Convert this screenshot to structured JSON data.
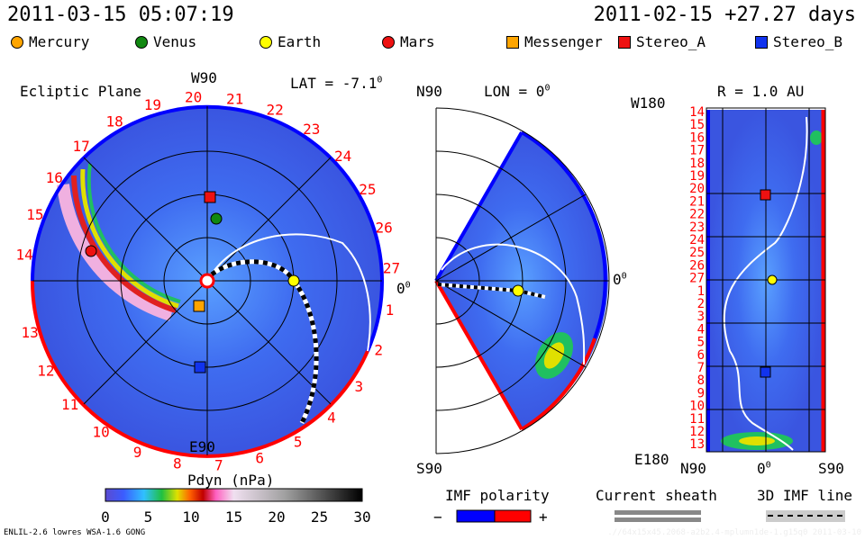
{
  "header": {
    "current_time": "2011-03-15 05:07:19",
    "reference": "2011-02-15 +27.27 days"
  },
  "legend": [
    {
      "label": "Mercury",
      "shape": "circle",
      "color": "#ffa500"
    },
    {
      "label": "Venus",
      "shape": "circle",
      "color": "#118811"
    },
    {
      "label": "Earth",
      "shape": "circle",
      "color": "#ffff00"
    },
    {
      "label": "Mars",
      "shape": "circle",
      "color": "#ee1111"
    },
    {
      "label": "Messenger",
      "shape": "square",
      "color": "#ffa500"
    },
    {
      "label": "Stereo_A",
      "shape": "square",
      "color": "#ee1111"
    },
    {
      "label": "Stereo_B",
      "shape": "square",
      "color": "#1133ee"
    }
  ],
  "ecliptic": {
    "title": "Ecliptic Plane",
    "top_label": "W90",
    "bottom_label": "E90",
    "lat_label": "LAT = -7.1",
    "lat_sup": "0",
    "right_label": "0",
    "right_sup": "0",
    "days_upper": [
      "14",
      "15",
      "16",
      "17",
      "18",
      "19",
      "20",
      "21",
      "22",
      "23",
      "24",
      "25",
      "26",
      "27"
    ],
    "days_lower": [
      "1",
      "2",
      "3",
      "4",
      "5",
      "6",
      "7",
      "8",
      "9",
      "10",
      "11",
      "12",
      "13"
    ]
  },
  "meridional": {
    "top_label": "N90",
    "bottom_label": "S90",
    "lon_label": "LON = 0",
    "lon_sup": "0",
    "right_label": "0",
    "right_sup": "0"
  },
  "radial": {
    "title": "R = 1.0 AU",
    "top_label": "W180",
    "bottom_label": "E180",
    "x_left": "N90",
    "x_mid": "0",
    "x_mid_sup": "0",
    "x_right": "S90",
    "days": [
      "14",
      "15",
      "16",
      "17",
      "18",
      "19",
      "20",
      "21",
      "22",
      "23",
      "24",
      "25",
      "26",
      "27",
      "1",
      "2",
      "3",
      "4",
      "5",
      "6",
      "7",
      "8",
      "9",
      "10",
      "11",
      "12",
      "13"
    ]
  },
  "chart_data": {
    "type": "heatmap",
    "quantity_label": "Pdyn (nPa)",
    "colorbar": {
      "range": [
        0,
        30
      ],
      "ticks": [
        "0",
        "5",
        "10",
        "15",
        "20",
        "25",
        "30"
      ]
    }
  },
  "imf": {
    "title": "IMF polarity",
    "minus": "−",
    "plus": "+",
    "colors": [
      "#0000ff",
      "#ff0000"
    ]
  },
  "sheath": {
    "title": "Current sheath"
  },
  "imfline": {
    "title": "3D IMF line"
  },
  "footer": {
    "model": "ENLIL-2.6 lowres WSA-1.6 GONG",
    "run": ".//64x15x45.2068-a2b2.4-mplumn1de-1.g15q0   2011-03-10"
  }
}
